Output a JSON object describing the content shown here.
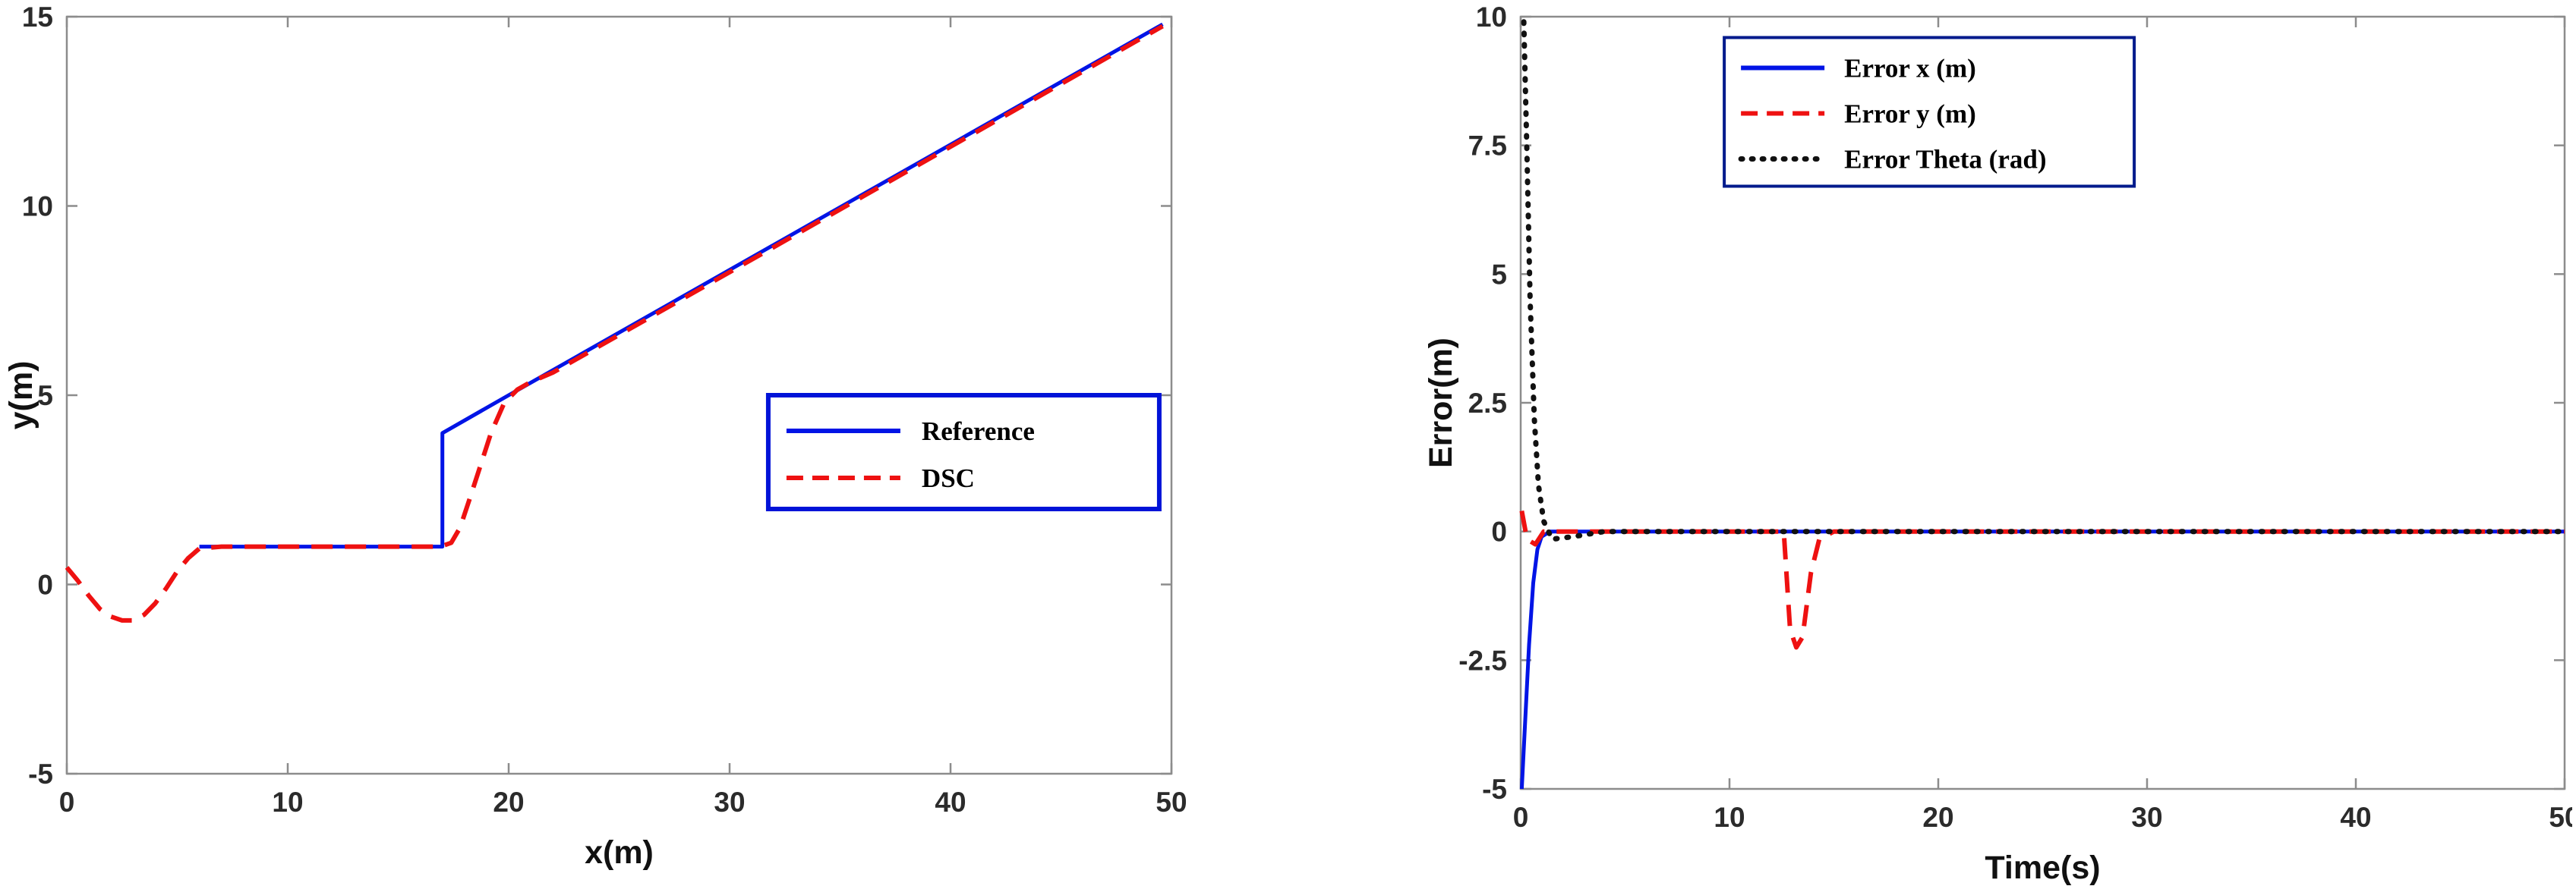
{
  "page": {
    "background_color": "#ffffff",
    "axis_color": "#8c8c8c"
  },
  "chart_data": [
    {
      "type": "line",
      "title": "",
      "xlabel": "x(m)",
      "ylabel": "y(m)",
      "xlim": [
        0,
        50
      ],
      "ylim": [
        -5,
        15
      ],
      "xticks": [
        0,
        10,
        20,
        30,
        40,
        50
      ],
      "yticks": [
        -5,
        0,
        5,
        10,
        15
      ],
      "grid": false,
      "legend": {
        "position": "center-right",
        "border_color": "#0013d8",
        "entries": [
          "Reference",
          "DSC"
        ]
      },
      "series": [
        {
          "name": "Reference",
          "color": "#0014e6",
          "style": "solid",
          "x": [
            6,
            17,
            17,
            20,
            49.6
          ],
          "y": [
            1,
            1,
            4,
            5,
            14.8
          ]
        },
        {
          "name": "DSC",
          "color": "#ee1111",
          "style": "dashed",
          "x": [
            0,
            0.5,
            1,
            1.5,
            2,
            2.5,
            3,
            3.5,
            4,
            4.5,
            5,
            5.5,
            6,
            7,
            16.9,
            17.4,
            17.8,
            18.2,
            18.7,
            19.2,
            19.8,
            20.4,
            21,
            22,
            49.6
          ],
          "y": [
            0.45,
            0.1,
            -0.3,
            -0.65,
            -0.85,
            -0.95,
            -0.95,
            -0.8,
            -0.5,
            -0.1,
            0.35,
            0.7,
            0.95,
            1,
            1,
            1.1,
            1.5,
            2.2,
            3.1,
            4.0,
            4.8,
            5.15,
            5.35,
            5.6,
            14.75
          ]
        }
      ]
    },
    {
      "type": "line",
      "title": "",
      "xlabel": "Time(s)",
      "ylabel": "Error(m)",
      "xlim": [
        0,
        50
      ],
      "ylim": [
        -5,
        10
      ],
      "xticks": [
        0,
        10,
        20,
        30,
        40,
        50
      ],
      "yticks": [
        -5,
        -2.5,
        0,
        2.5,
        5,
        7.5,
        10
      ],
      "grid": false,
      "legend": {
        "position": "top-right",
        "border_color": "#001a8c",
        "entries": [
          "Error x (m)",
          "Error y (m)",
          "Error Theta (rad)"
        ]
      },
      "series": [
        {
          "name": "Error x (m)",
          "color": "#0014e6",
          "style": "solid",
          "x": [
            0.05,
            0.2,
            0.4,
            0.6,
            0.8,
            1.0,
            1.4,
            2,
            50
          ],
          "y": [
            -5,
            -3.8,
            -2.2,
            -1.0,
            -0.35,
            -0.1,
            0,
            0,
            0
          ]
        },
        {
          "name": "Error y (m)",
          "color": "#ee1111",
          "style": "dashed",
          "x": [
            0.05,
            0.3,
            0.7,
            1.1,
            12.6,
            12.9,
            13.2,
            13.5,
            13.9,
            14.3,
            15,
            50
          ],
          "y": [
            0.4,
            -0.15,
            -0.25,
            0,
            0,
            -1.9,
            -2.25,
            -2.05,
            -0.8,
            -0.15,
            0,
            0
          ]
        },
        {
          "name": "Error Theta (rad)",
          "color": "#111111",
          "style": "dotted",
          "x": [
            0.15,
            0.3,
            0.45,
            0.65,
            0.85,
            1.1,
            1.5,
            2.5,
            4,
            50
          ],
          "y": [
            9.9,
            7.3,
            4.5,
            2.2,
            0.9,
            0.2,
            -0.15,
            -0.1,
            0,
            0
          ]
        }
      ]
    }
  ]
}
